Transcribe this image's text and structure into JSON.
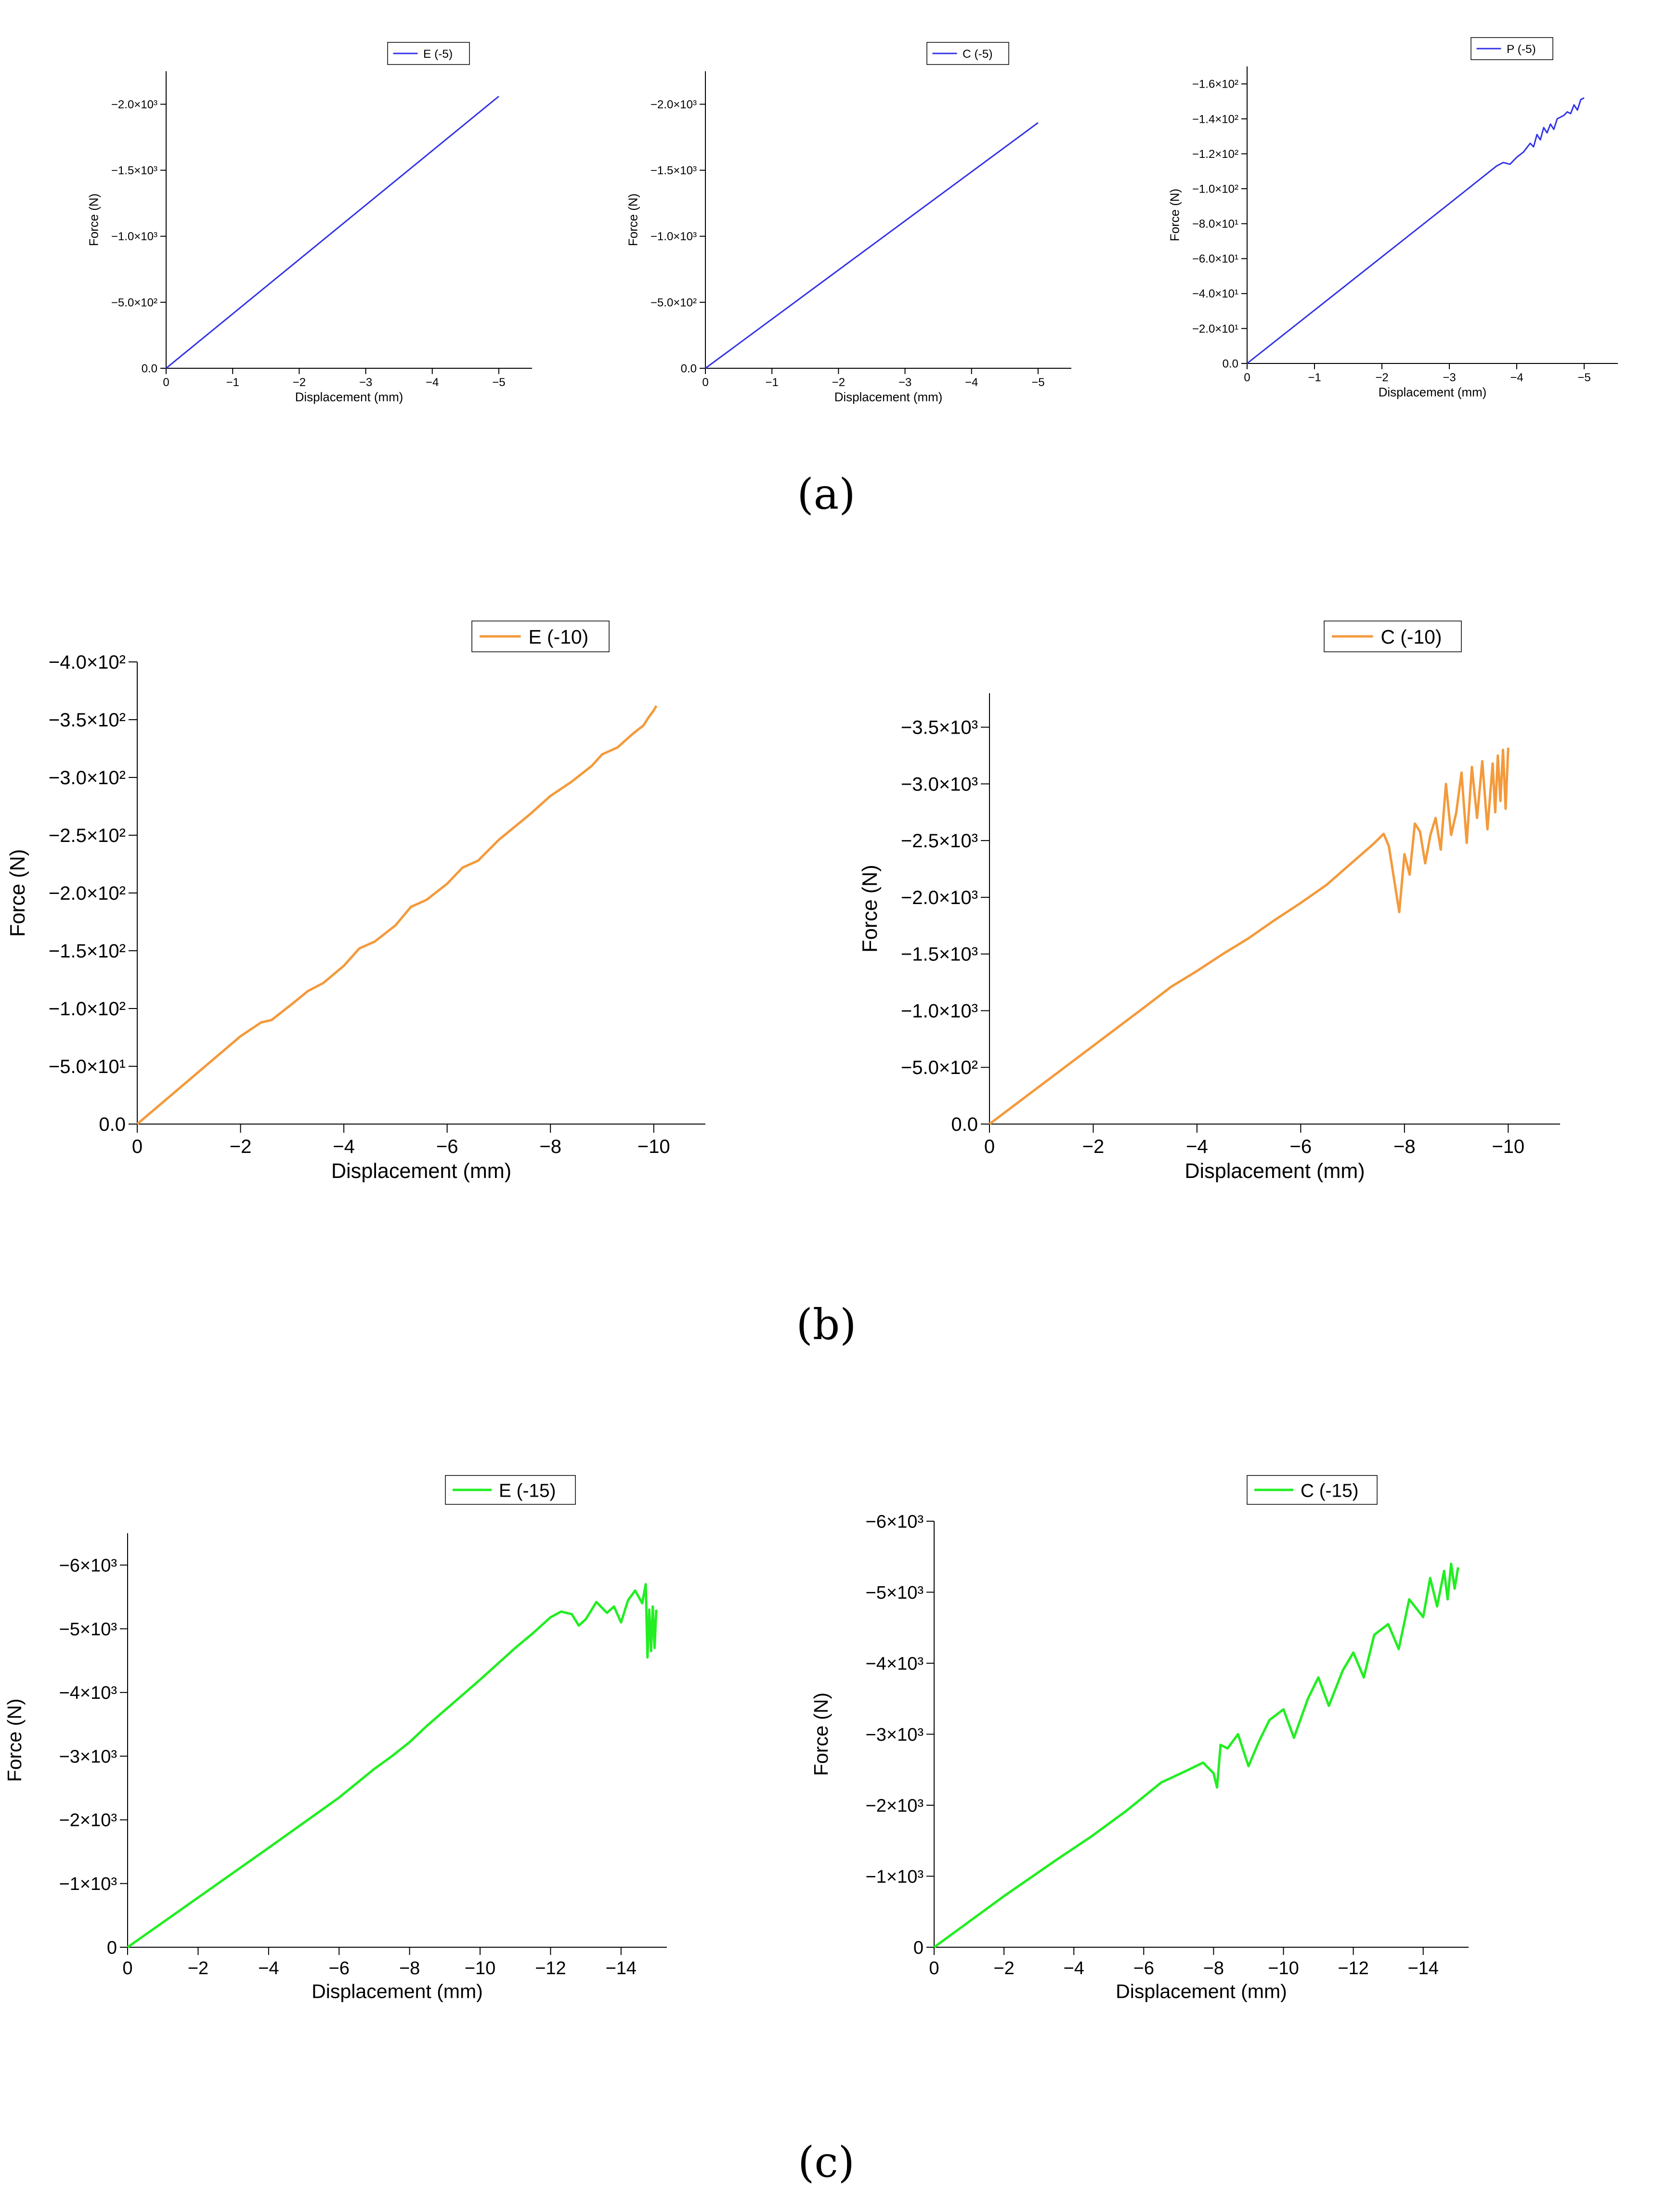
{
  "captions": [
    "(a)",
    "(b)",
    "(c)"
  ],
  "chart_data": [
    {
      "type": "line",
      "panel": "a",
      "legend_position": "top-right",
      "xlabel": "Displacement (mm)",
      "ylabel": "Force (N)",
      "xlim": [
        0,
        -5.5
      ],
      "ylim": [
        0,
        -2250
      ],
      "xticks": [
        0,
        -1,
        -2,
        -3,
        -4,
        -5
      ],
      "xtick_labels": [
        "0",
        "−1",
        "−2",
        "−3",
        "−4",
        "−5"
      ],
      "yticks": [
        0,
        -500,
        -1000,
        -1500,
        -2000
      ],
      "ytick_labels": [
        "0.0",
        "−5.0×10²",
        "−1.0×10³",
        "−1.5×10³",
        "−2.0×10³"
      ],
      "grid": false,
      "series": [
        {
          "name": "E (-5)",
          "color": "#3333e6",
          "x": [
            0,
            -5
          ],
          "y": [
            0,
            -2060
          ]
        }
      ]
    },
    {
      "type": "line",
      "panel": "a",
      "legend_position": "top-right",
      "xlabel": "Displacement (mm)",
      "ylabel": "Force (N)",
      "xlim": [
        0,
        -5.5
      ],
      "ylim": [
        0,
        -2250
      ],
      "xticks": [
        0,
        -1,
        -2,
        -3,
        -4,
        -5
      ],
      "xtick_labels": [
        "0",
        "−1",
        "−2",
        "−3",
        "−4",
        "−5"
      ],
      "yticks": [
        0,
        -500,
        -1000,
        -1500,
        -2000
      ],
      "ytick_labels": [
        "0.0",
        "−5.0×10²",
        "−1.0×10³",
        "−1.5×10³",
        "−2.0×10³"
      ],
      "grid": false,
      "series": [
        {
          "name": "C (-5)",
          "color": "#3333e6",
          "x": [
            0,
            -5
          ],
          "y": [
            0,
            -1860
          ]
        }
      ]
    },
    {
      "type": "line",
      "panel": "a",
      "legend_position": "top-right",
      "xlabel": "Displacement (mm)",
      "ylabel": "Force (N)",
      "xlim": [
        0,
        -5.5
      ],
      "ylim": [
        0,
        -170
      ],
      "xticks": [
        0,
        -1,
        -2,
        -3,
        -4,
        -5
      ],
      "xtick_labels": [
        "0",
        "−1",
        "−2",
        "−3",
        "−4",
        "−5"
      ],
      "yticks": [
        0,
        -20,
        -40,
        -60,
        -80,
        -100,
        -120,
        -140,
        -160
      ],
      "ytick_labels": [
        "0.0",
        "−2.0×10¹",
        "−4.0×10¹",
        "−6.0×10¹",
        "−8.0×10¹",
        "−1.0×10²",
        "−1.2×10²",
        "−1.4×10²",
        "−1.6×10²"
      ],
      "grid": false,
      "series": [
        {
          "name": "P (-5)",
          "color": "#3333e6",
          "x": [
            0,
            -1,
            -2,
            -3,
            -3.7,
            -3.8,
            -3.9,
            -4.0,
            -4.1,
            -4.2,
            -4.25,
            -4.3,
            -4.35,
            -4.4,
            -4.45,
            -4.5,
            -4.55,
            -4.6,
            -4.7,
            -4.75,
            -4.8,
            -4.85,
            -4.9,
            -4.95,
            -5.0
          ],
          "y": [
            0,
            -30.5,
            -61,
            -91.5,
            -113,
            -115,
            -114,
            -118,
            -121,
            -126,
            -124,
            -131,
            -128,
            -135,
            -132,
            -137,
            -134,
            -140,
            -142,
            -144,
            -143,
            -148,
            -145,
            -151,
            -152
          ]
        }
      ]
    },
    {
      "type": "line",
      "panel": "b",
      "legend_position": "top-right",
      "xlabel": "Displacement (mm)",
      "ylabel": "Force (N)",
      "xlim": [
        0,
        -11
      ],
      "ylim": [
        0,
        -400
      ],
      "xticks": [
        0,
        -2,
        -4,
        -6,
        -8,
        -10
      ],
      "xtick_labels": [
        "0",
        "−2",
        "−4",
        "−6",
        "−8",
        "−10"
      ],
      "yticks": [
        0,
        -50,
        -100,
        -150,
        -200,
        -250,
        -300,
        -350,
        -400
      ],
      "ytick_labels": [
        "0.0",
        "−5.0×10¹",
        "−1.0×10²",
        "−1.5×10²",
        "−2.0×10²",
        "−2.5×10²",
        "−3.0×10²",
        "−3.5×10²",
        "−4.0×10²"
      ],
      "grid": false,
      "series": [
        {
          "name": "E (-10)",
          "color": "#f39a3c",
          "x": [
            0,
            -1,
            -2,
            -2.4,
            -2.6,
            -3,
            -3.3,
            -3.6,
            -4,
            -4.3,
            -4.6,
            -5,
            -5.3,
            -5.6,
            -6,
            -6.3,
            -6.6,
            -7,
            -7.3,
            -7.6,
            -8,
            -8.4,
            -8.8,
            -9,
            -9.3,
            -9.6,
            -9.8,
            -9.9,
            -10,
            -10.05
          ],
          "y": [
            0,
            -38,
            -76,
            -88,
            -90,
            -104,
            -115,
            -122,
            -137,
            -152,
            -158,
            -172,
            -188,
            -194,
            -208,
            -222,
            -228,
            -246,
            -257,
            -268,
            -284,
            -296,
            -310,
            -320,
            -326,
            -338,
            -345,
            -352,
            -358,
            -362
          ]
        }
      ]
    },
    {
      "type": "line",
      "panel": "b",
      "legend_position": "top-right",
      "xlabel": "Displacement (mm)",
      "ylabel": "Force (N)",
      "xlim": [
        0,
        -11
      ],
      "ylim": [
        0,
        -3800
      ],
      "xticks": [
        0,
        -2,
        -4,
        -6,
        -8,
        -10
      ],
      "xtick_labels": [
        "0",
        "−2",
        "−4",
        "−6",
        "−8",
        "−10"
      ],
      "yticks": [
        0,
        -500,
        -1000,
        -1500,
        -2000,
        -2500,
        -3000,
        -3500
      ],
      "ytick_labels": [
        "0.0",
        "−5.0×10²",
        "−1.0×10³",
        "−1.5×10³",
        "−2.0×10³",
        "−2.5×10³",
        "−3.0×10³",
        "−3.5×10³"
      ],
      "grid": false,
      "series": [
        {
          "name": "C (-10)",
          "color": "#f39a3c",
          "x": [
            0,
            -1,
            -2,
            -3,
            -3.5,
            -4,
            -4.5,
            -5,
            -5.5,
            -6,
            -6.5,
            -7,
            -7.4,
            -7.6,
            -7.7,
            -7.9,
            -8.0,
            -8.1,
            -8.2,
            -8.3,
            -8.4,
            -8.5,
            -8.6,
            -8.7,
            -8.8,
            -8.9,
            -9.0,
            -9.1,
            -9.2,
            -9.3,
            -9.4,
            -9.5,
            -9.6,
            -9.7,
            -9.75,
            -9.8,
            -9.85,
            -9.9,
            -9.95,
            -10.0
          ],
          "y": [
            0,
            -345,
            -690,
            -1035,
            -1210,
            -1350,
            -1500,
            -1640,
            -1800,
            -1950,
            -2110,
            -2310,
            -2470,
            -2560,
            -2450,
            -1870,
            -2380,
            -2200,
            -2650,
            -2580,
            -2300,
            -2550,
            -2700,
            -2420,
            -3000,
            -2550,
            -2750,
            -3100,
            -2480,
            -3150,
            -2700,
            -3200,
            -2600,
            -3180,
            -2750,
            -3250,
            -2850,
            -3300,
            -2780,
            -3320
          ]
        }
      ]
    },
    {
      "type": "line",
      "panel": "c",
      "legend_position": "top-right",
      "xlabel": "Displacement (mm)",
      "ylabel": "Force (N)",
      "xlim": [
        0,
        -15.3
      ],
      "ylim": [
        0,
        -6500
      ],
      "xticks": [
        0,
        -2,
        -4,
        -6,
        -8,
        -10,
        -12,
        -14
      ],
      "xtick_labels": [
        "0",
        "−2",
        "−4",
        "−6",
        "−8",
        "−10",
        "−12",
        "−14"
      ],
      "yticks": [
        0,
        -1000,
        -2000,
        -3000,
        -4000,
        -5000,
        -6000
      ],
      "ytick_labels": [
        "0",
        "−1×10³",
        "−2×10³",
        "−3×10³",
        "−4×10³",
        "−5×10³",
        "−6×10³"
      ],
      "grid": false,
      "series": [
        {
          "name": "E (-15)",
          "color": "#22ee22",
          "x": [
            0,
            -2,
            -4,
            -6,
            -7,
            -7.5,
            -8,
            -8.5,
            -9,
            -9.5,
            -10,
            -10.5,
            -11,
            -11.5,
            -12,
            -12.3,
            -12.6,
            -12.8,
            -13.0,
            -13.3,
            -13.6,
            -13.8,
            -14.0,
            -14.2,
            -14.4,
            -14.6,
            -14.7,
            -14.75,
            -14.8,
            -14.85,
            -14.9,
            -14.95,
            -15.0
          ],
          "y": [
            0,
            -780,
            -1560,
            -2350,
            -2800,
            -3000,
            -3220,
            -3480,
            -3720,
            -3960,
            -4200,
            -4450,
            -4700,
            -4930,
            -5180,
            -5270,
            -5230,
            -5050,
            -5150,
            -5420,
            -5250,
            -5350,
            -5100,
            -5450,
            -5600,
            -5400,
            -5700,
            -4550,
            -5300,
            -4650,
            -5350,
            -4700,
            -5300
          ]
        }
      ]
    },
    {
      "type": "line",
      "panel": "c",
      "legend_position": "top-right",
      "xlabel": "Displacement (mm)",
      "ylabel": "Force (N)",
      "xlim": [
        0,
        -15.3
      ],
      "ylim": [
        0,
        -6000
      ],
      "xticks": [
        0,
        -2,
        -4,
        -6,
        -8,
        -10,
        -12,
        -14
      ],
      "xtick_labels": [
        "0",
        "−2",
        "−4",
        "−6",
        "−8",
        "−10",
        "−12",
        "−14"
      ],
      "yticks": [
        0,
        -1000,
        -2000,
        -3000,
        -4000,
        -5000,
        -6000
      ],
      "ytick_labels": [
        "0",
        "−1×10³",
        "−2×10³",
        "−3×10³",
        "−4×10³",
        "−5×10³",
        "−6×10³"
      ],
      "grid": false,
      "series": [
        {
          "name": "C (-15)",
          "color": "#22ee22",
          "x": [
            0,
            -2,
            -3.5,
            -4.5,
            -5.5,
            -6.5,
            -7.2,
            -7.7,
            -8.0,
            -8.1,
            -8.2,
            -8.4,
            -8.7,
            -9.0,
            -9.3,
            -9.6,
            -10.0,
            -10.3,
            -10.7,
            -11.0,
            -11.3,
            -11.7,
            -12.0,
            -12.3,
            -12.6,
            -13.0,
            -13.3,
            -13.6,
            -14.0,
            -14.2,
            -14.4,
            -14.6,
            -14.7,
            -14.8,
            -14.9,
            -15.0
          ],
          "y": [
            0,
            -720,
            -1230,
            -1560,
            -1920,
            -2320,
            -2480,
            -2600,
            -2450,
            -2250,
            -2850,
            -2800,
            -3000,
            -2550,
            -2900,
            -3200,
            -3350,
            -2950,
            -3500,
            -3800,
            -3400,
            -3900,
            -4150,
            -3800,
            -4400,
            -4550,
            -4200,
            -4900,
            -4650,
            -5200,
            -4800,
            -5300,
            -4900,
            -5400,
            -5050,
            -5350
          ]
        }
      ]
    }
  ]
}
